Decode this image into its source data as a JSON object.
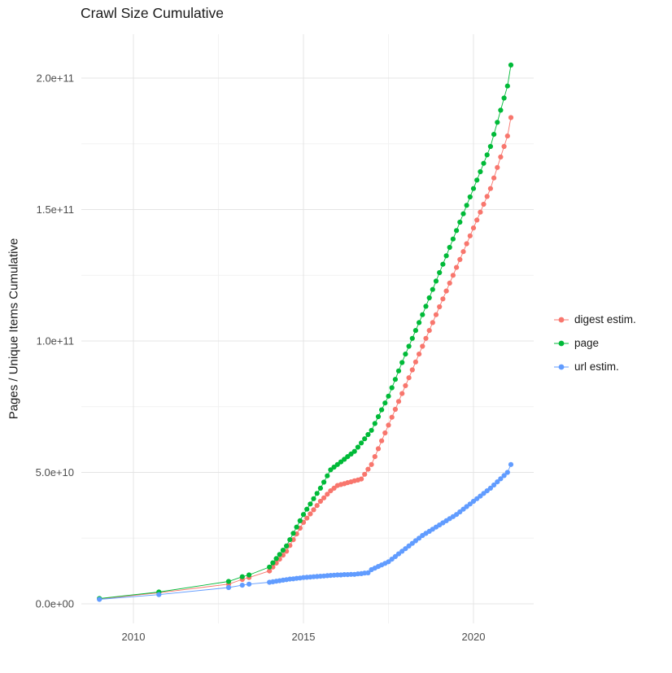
{
  "chart_data": {
    "type": "scatter",
    "title": "Crawl Size Cumulative",
    "ylabel": "Pages / Unique Items Cumulative",
    "xlabel": "",
    "value_unit": "billions (1e9) of pages / unique items",
    "grid": true,
    "colors": {
      "grid_major": "#E4E4E4",
      "grid_minor": "#F2F2F2",
      "tick_label": "#4D4D4D"
    },
    "x_axis": {
      "ticks": [
        2010,
        2015,
        2020
      ],
      "tick_labels": [
        "2010",
        "2015",
        "2020"
      ],
      "minor_ticks": [
        2012.5,
        2017.5
      ],
      "range": [
        2008.5,
        2021.75
      ]
    },
    "y_axis": {
      "tick_labels": [
        "0.0e+00",
        "5.0e+10",
        "1.0e+11",
        "1.5e+11",
        "2.0e+11"
      ],
      "ticks_billions": [
        0,
        50,
        100,
        150,
        200
      ],
      "minor_ticks_billions": [
        25,
        75,
        125,
        175
      ],
      "range_billions": [
        -10,
        217
      ]
    },
    "legend": {
      "position": "right",
      "entries": [
        "digest estim.",
        "page",
        "url estim."
      ]
    },
    "x_sparse": [
      2009.0,
      2010.75,
      2012.8,
      2013.2,
      2013.4
    ],
    "x_dense": [
      2014.0,
      2014.1,
      2014.2,
      2014.3,
      2014.4,
      2014.5,
      2014.6,
      2014.7,
      2014.8,
      2014.9,
      2015.0,
      2015.1,
      2015.2,
      2015.3,
      2015.4,
      2015.5,
      2015.6,
      2015.7,
      2015.8,
      2015.9,
      2016.0,
      2016.1,
      2016.2,
      2016.3,
      2016.4,
      2016.5,
      2016.6,
      2016.7,
      2016.8,
      2016.9,
      2017.0,
      2017.1,
      2017.2,
      2017.3,
      2017.4,
      2017.5,
      2017.6,
      2017.7,
      2017.8,
      2017.9,
      2018.0,
      2018.1,
      2018.2,
      2018.3,
      2018.4,
      2018.5,
      2018.6,
      2018.7,
      2018.8,
      2018.9,
      2019.0,
      2019.1,
      2019.2,
      2019.3,
      2019.4,
      2019.5,
      2019.6,
      2019.7,
      2019.8,
      2019.9,
      2020.0,
      2020.1,
      2020.2,
      2020.3,
      2020.4,
      2020.5,
      2020.6,
      2020.7,
      2020.8,
      2020.9,
      2021.0,
      2021.1
    ],
    "series": [
      {
        "name": "digest estim.",
        "color": "#F8766D",
        "sparse_values": [
          1.9,
          4.2,
          7.5,
          9.3,
          10.0
        ],
        "dense_values": [
          12.5,
          14,
          15.5,
          17,
          18.5,
          20,
          22.2,
          24.4,
          26.6,
          28.8,
          31,
          32.6,
          34.2,
          35.8,
          37.4,
          39,
          40.3,
          41.7,
          43,
          44,
          45,
          45.4,
          45.7,
          46.1,
          46.4,
          46.8,
          47.1,
          47.5,
          49.3,
          51.2,
          53,
          56,
          59,
          62,
          65,
          68,
          71,
          74,
          77,
          80,
          83,
          86,
          89,
          92,
          95,
          98,
          101,
          104,
          107,
          110,
          113,
          116,
          119,
          122,
          125,
          128,
          131,
          134,
          137,
          140,
          143,
          146,
          149,
          152,
          155,
          158,
          162,
          166,
          170,
          174,
          178,
          185
        ]
      },
      {
        "name": "page",
        "color": "#00BA38",
        "sparse_values": [
          2.0,
          4.5,
          8.5,
          10.3,
          11.0
        ],
        "dense_values": [
          14,
          15.6,
          17.2,
          18.8,
          20.4,
          22,
          24.4,
          26.8,
          29.2,
          31.6,
          34,
          36,
          38,
          40,
          42,
          44,
          46.3,
          48.7,
          51,
          52,
          53,
          54,
          55,
          56,
          57,
          58,
          59.6,
          61.2,
          62.8,
          64.4,
          66,
          68.6,
          71.2,
          73.8,
          76.4,
          79,
          82.2,
          85.4,
          88.6,
          91.8,
          95,
          98,
          101,
          104,
          107,
          110,
          113.2,
          116.4,
          119.6,
          122.8,
          126,
          129.2,
          132.4,
          135.6,
          138.8,
          142,
          145.2,
          148.4,
          151.6,
          154.8,
          158,
          161.2,
          164.4,
          167.6,
          170.8,
          174,
          178.6,
          183.2,
          187.8,
          192.4,
          197,
          205
        ]
      },
      {
        "name": "url estim.",
        "color": "#619CFF",
        "sparse_values": [
          1.7,
          3.5,
          6.2,
          7.1,
          7.5
        ],
        "dense_values": [
          8.2,
          8.4,
          8.6,
          8.8,
          9,
          9.2,
          9.4,
          9.5,
          9.7,
          9.8,
          10,
          10.1,
          10.2,
          10.3,
          10.4,
          10.5,
          10.6,
          10.7,
          10.8,
          10.9,
          11,
          11,
          11.1,
          11.1,
          11.2,
          11.2,
          11.4,
          11.5,
          11.7,
          11.8,
          13,
          13.6,
          14.2,
          14.8,
          15.4,
          16,
          17,
          18,
          19,
          20,
          21,
          22,
          23,
          24,
          25,
          26,
          26.8,
          27.6,
          28.4,
          29.2,
          30,
          30.8,
          31.6,
          32.4,
          33.2,
          34,
          35,
          36,
          37,
          38,
          39,
          40,
          41,
          42,
          43,
          44,
          45.2,
          46.4,
          47.6,
          48.8,
          50,
          53
        ]
      }
    ]
  }
}
